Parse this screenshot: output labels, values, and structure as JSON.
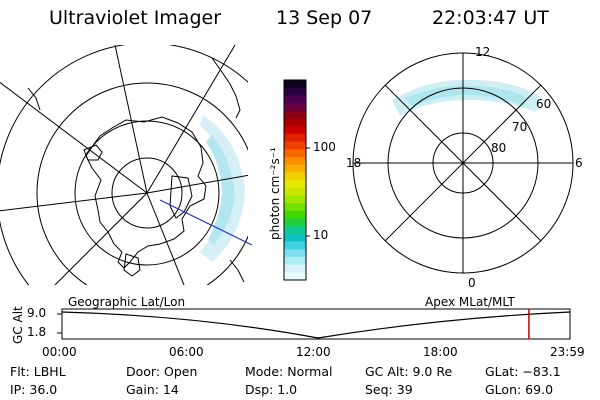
{
  "header": {
    "instrument": "Ultraviolet Imager",
    "date": "13 Sep 07",
    "time": "22:03:47 UT"
  },
  "colorbar": {
    "unit_label": "photon cm⁻²s⁻¹",
    "ticks": [
      "100",
      "10"
    ],
    "colors": [
      "#120020",
      "#2a0040",
      "#4a0050",
      "#6a0040",
      "#8a0010",
      "#a80000",
      "#cc0000",
      "#e02000",
      "#f04000",
      "#f66800",
      "#f88e00",
      "#f8b000",
      "#f0d000",
      "#e8e800",
      "#c8e800",
      "#a0e800",
      "#70e000",
      "#40d800",
      "#20d040",
      "#10c890",
      "#10c0c0",
      "#40d0e0",
      "#80e0f0",
      "#b0ecf4",
      "#d8f4f8",
      "#ebfafc"
    ]
  },
  "left_map": {
    "label": "Geographic Lat/Lon"
  },
  "right_map": {
    "label": "Apex MLat/MLT",
    "mlt_labels": {
      "top": "12",
      "bottom": "0",
      "left": "18",
      "right": "6"
    },
    "lat_labels": [
      "60",
      "70",
      "80"
    ]
  },
  "timeline": {
    "axis_label": "GC Alt",
    "y_ticks": [
      "9.0",
      "1.8"
    ],
    "x_ticks": [
      "00:00",
      "06:00",
      "12:00",
      "18:00",
      "23:59"
    ],
    "current_time_hours": 22.06,
    "cursor_color": "#cc0000"
  },
  "status": {
    "filter": "Flt: LBHL",
    "ip": "IP: 36.0",
    "door": "Door: Open",
    "gain": "Gain: 14",
    "mode": "Mode: Normal",
    "dsp": "Dsp:    1.0",
    "gc_alt": "GC Alt: 9.0 Re",
    "seq": "Seq: 39",
    "glat": "GLat: −83.1",
    "glon": "GLon:  69.0"
  }
}
